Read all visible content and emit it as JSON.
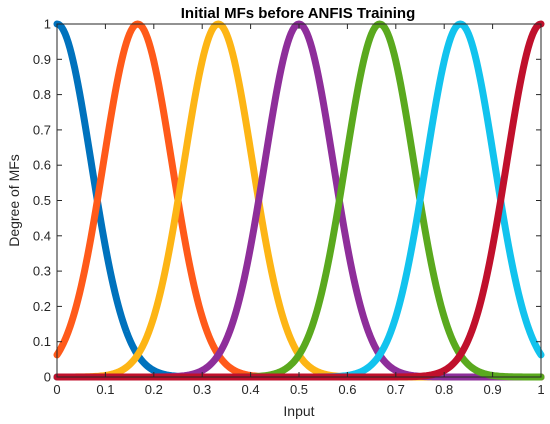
{
  "chart_data": {
    "type": "line",
    "title": "Initial MFs before ANFIS Training",
    "xlabel": "Input",
    "ylabel": "Degree of MFs",
    "xlim": [
      0,
      1
    ],
    "ylim": [
      0,
      1
    ],
    "xticks": [
      "0",
      "0.1",
      "0.2",
      "0.3",
      "0.4",
      "0.5",
      "0.6",
      "0.7",
      "0.8",
      "0.9",
      "1"
    ],
    "yticks": [
      "0",
      "0.1",
      "0.2",
      "0.3",
      "0.4",
      "0.5",
      "0.6",
      "0.7",
      "0.8",
      "0.9",
      "1"
    ],
    "grid": false,
    "membership_function": "gaussian",
    "sigma": 0.0708,
    "series": [
      {
        "center": 0.0,
        "color": "#0072BD"
      },
      {
        "center": 0.1667,
        "color": "#FF5A1A"
      },
      {
        "center": 0.3333,
        "color": "#FDB515"
      },
      {
        "center": 0.5,
        "color": "#8E2E9A"
      },
      {
        "center": 0.6667,
        "color": "#5AA91E"
      },
      {
        "center": 0.8333,
        "color": "#12C3EE"
      },
      {
        "center": 1.0,
        "color": "#C0102C"
      }
    ]
  }
}
